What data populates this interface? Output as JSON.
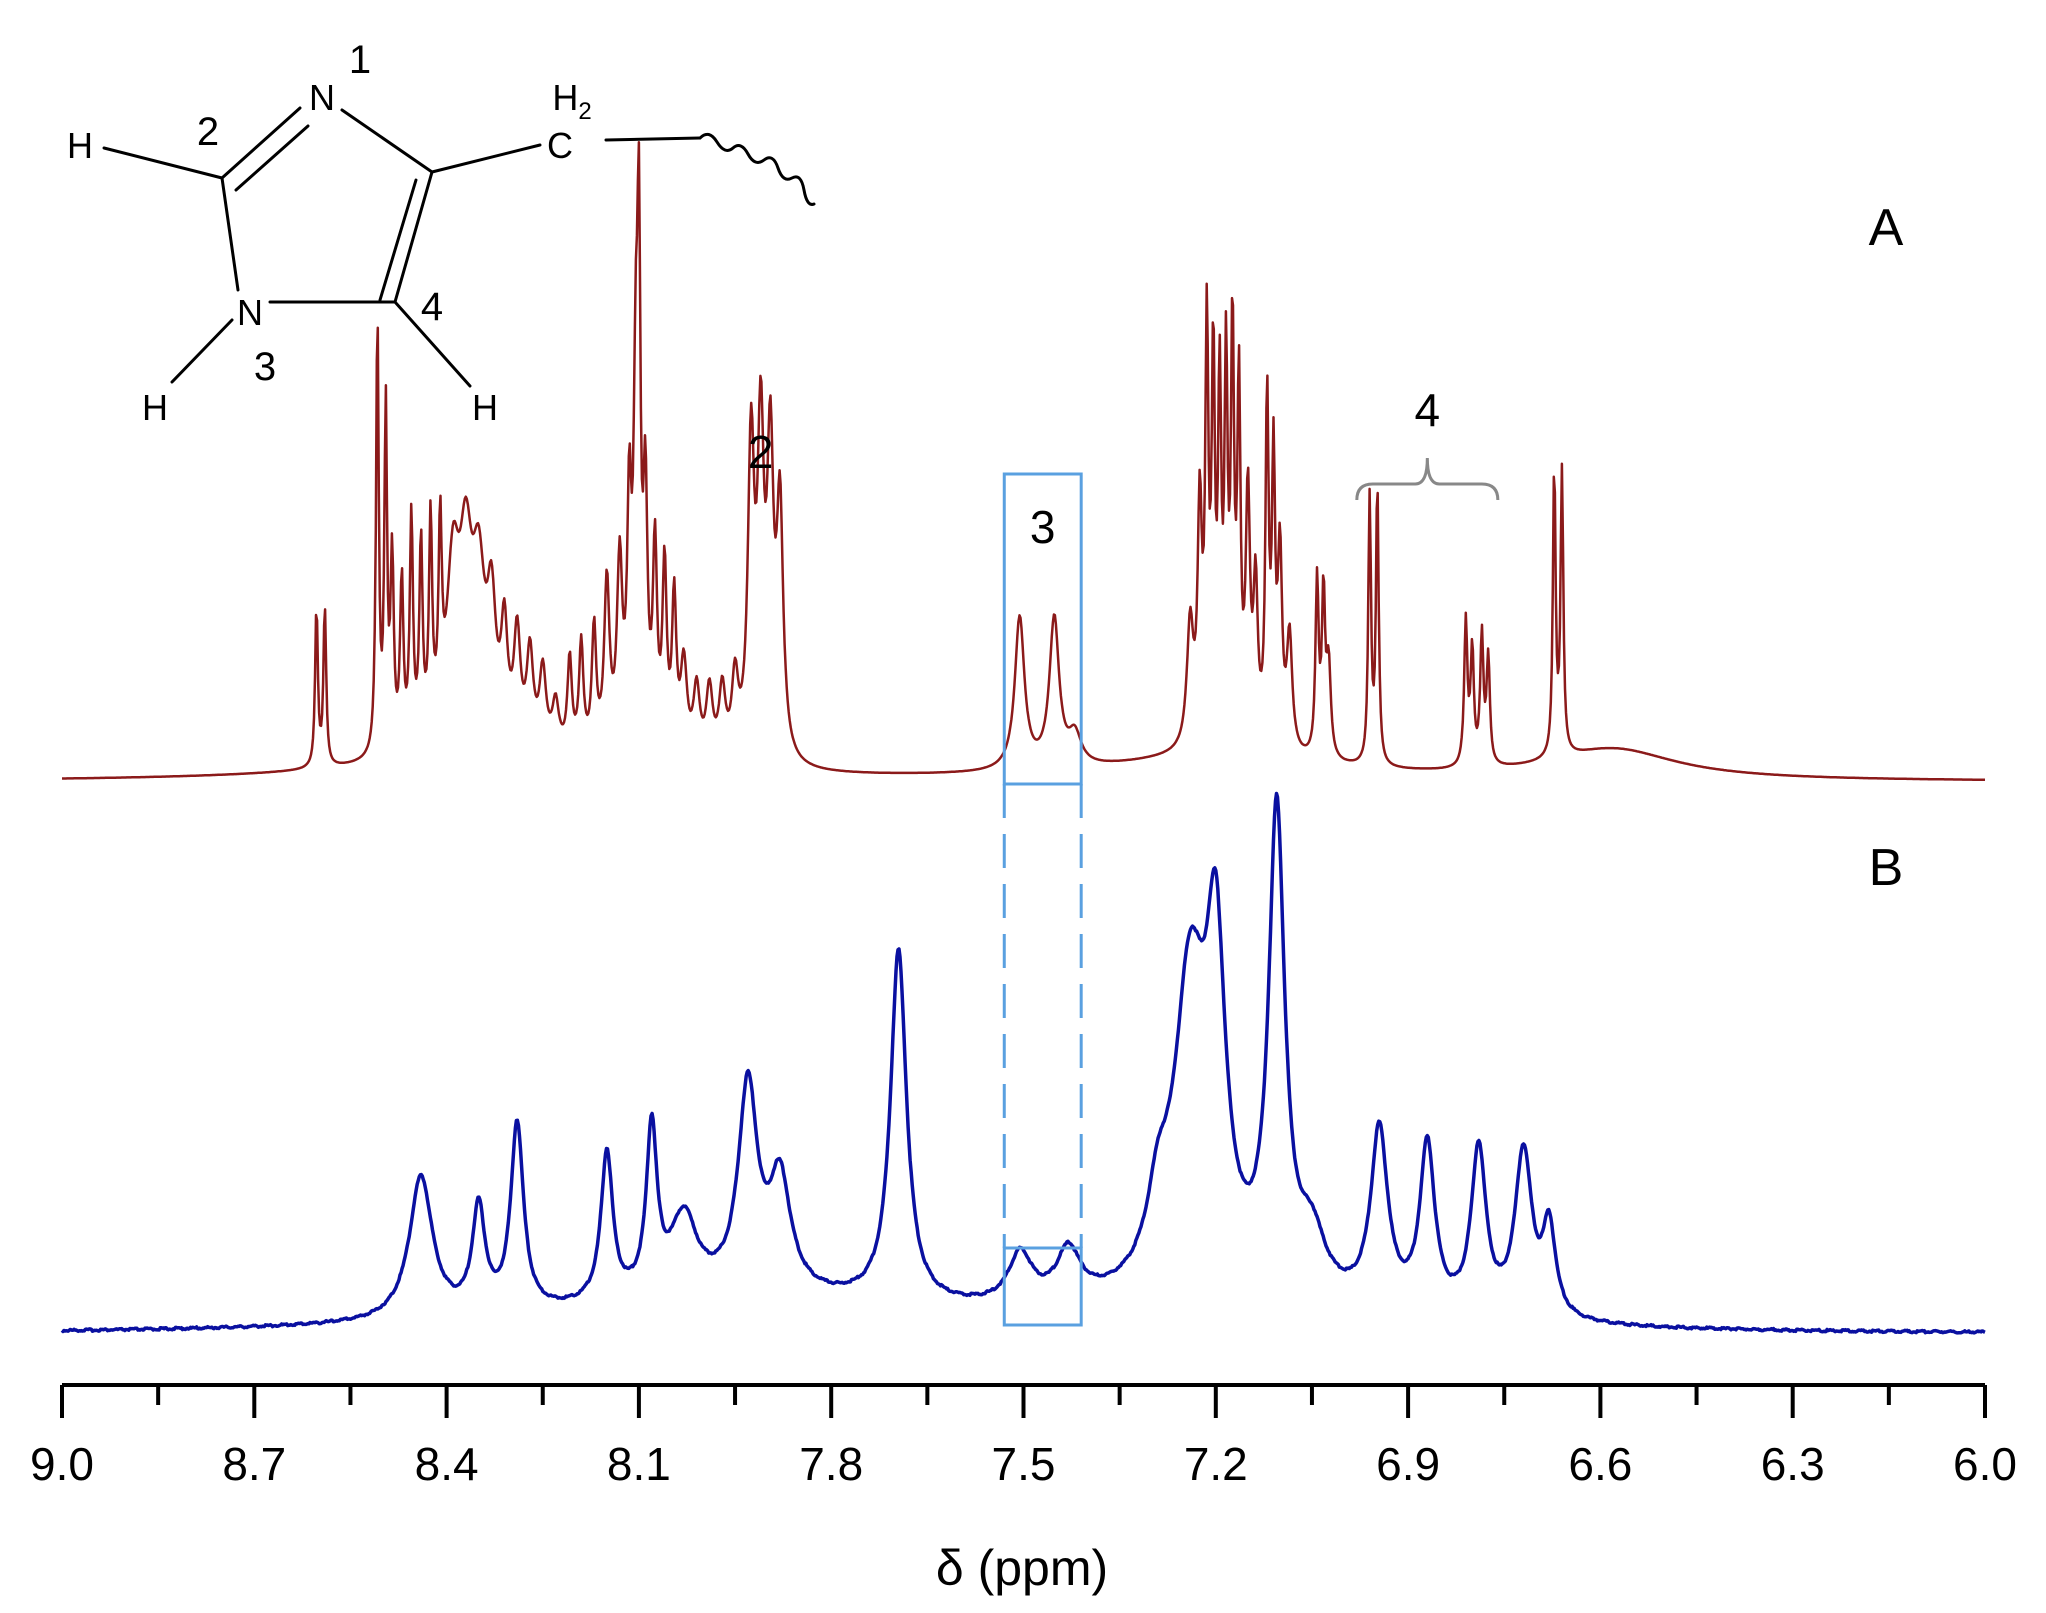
{
  "chart_data": {
    "type": "line",
    "xlabel": "δ (ppm)",
    "xlim": [
      9.0,
      6.0
    ],
    "x_reversed": true,
    "ylim": [
      0,
      1
    ],
    "y_axis_visible": false,
    "grid": false,
    "x_ticks": [
      "9.0",
      "8.7",
      "8.4",
      "8.1",
      "7.8",
      "7.5",
      "7.2",
      "6.9",
      "6.6",
      "6.3",
      "6.0"
    ],
    "panels": [
      {
        "label": "A",
        "color": "#8b1a1a"
      },
      {
        "label": "B",
        "color": "#0a10a0"
      }
    ],
    "series": [
      {
        "color": "#8b1a1a",
        "panel": "A",
        "peaks": [
          {
            "x": 8.603,
            "h": 0.21,
            "w": 0.0025
          },
          {
            "x": 8.59,
            "h": 0.21,
            "w": 0.0025
          },
          {
            "x": 8.508,
            "h": 0.58,
            "w": 0.0025
          },
          {
            "x": 8.495,
            "h": 0.45,
            "w": 0.0025
          },
          {
            "x": 8.485,
            "h": 0.25,
            "w": 0.003
          },
          {
            "x": 8.47,
            "h": 0.22,
            "w": 0.003
          },
          {
            "x": 8.455,
            "h": 0.3,
            "w": 0.003
          },
          {
            "x": 8.44,
            "h": 0.26,
            "w": 0.003
          },
          {
            "x": 8.425,
            "h": 0.28,
            "w": 0.003
          },
          {
            "x": 8.41,
            "h": 0.25,
            "w": 0.003
          },
          {
            "x": 8.39,
            "h": 0.22,
            "w": 0.012
          },
          {
            "x": 8.37,
            "h": 0.22,
            "w": 0.012
          },
          {
            "x": 8.35,
            "h": 0.2,
            "w": 0.012
          },
          {
            "x": 8.33,
            "h": 0.16,
            "w": 0.008
          },
          {
            "x": 8.31,
            "h": 0.14,
            "w": 0.006
          },
          {
            "x": 8.29,
            "h": 0.14,
            "w": 0.006
          },
          {
            "x": 8.27,
            "h": 0.12,
            "w": 0.006
          },
          {
            "x": 8.25,
            "h": 0.1,
            "w": 0.006
          },
          {
            "x": 8.23,
            "h": 0.06,
            "w": 0.006
          },
          {
            "x": 8.208,
            "h": 0.12,
            "w": 0.004
          },
          {
            "x": 8.19,
            "h": 0.14,
            "w": 0.004
          },
          {
            "x": 8.17,
            "h": 0.16,
            "w": 0.004
          },
          {
            "x": 8.15,
            "h": 0.22,
            "w": 0.005
          },
          {
            "x": 8.13,
            "h": 0.24,
            "w": 0.005
          },
          {
            "x": 8.115,
            "h": 0.3,
            "w": 0.004
          },
          {
            "x": 8.105,
            "h": 0.42,
            "w": 0.004
          },
          {
            "x": 8.1,
            "h": 0.57,
            "w": 0.003
          },
          {
            "x": 8.09,
            "h": 0.32,
            "w": 0.004
          },
          {
            "x": 8.075,
            "h": 0.26,
            "w": 0.004
          },
          {
            "x": 8.06,
            "h": 0.24,
            "w": 0.004
          },
          {
            "x": 8.045,
            "h": 0.2,
            "w": 0.004
          },
          {
            "x": 8.03,
            "h": 0.12,
            "w": 0.006
          },
          {
            "x": 8.01,
            "h": 0.09,
            "w": 0.006
          },
          {
            "x": 7.99,
            "h": 0.09,
            "w": 0.006
          },
          {
            "x": 7.97,
            "h": 0.09,
            "w": 0.006
          },
          {
            "x": 7.95,
            "h": 0.1,
            "w": 0.006
          },
          {
            "x": 7.925,
            "h": 0.4,
            "w": 0.006
          },
          {
            "x": 7.91,
            "h": 0.4,
            "w": 0.006
          },
          {
            "x": 7.895,
            "h": 0.38,
            "w": 0.006
          },
          {
            "x": 7.88,
            "h": 0.32,
            "w": 0.006
          },
          {
            "x": 7.506,
            "h": 0.2,
            "w": 0.009
          },
          {
            "x": 7.452,
            "h": 0.195,
            "w": 0.009
          },
          {
            "x": 7.42,
            "h": 0.04,
            "w": 0.012
          },
          {
            "x": 7.24,
            "h": 0.16,
            "w": 0.006
          },
          {
            "x": 7.225,
            "h": 0.3,
            "w": 0.004
          },
          {
            "x": 7.214,
            "h": 0.52,
            "w": 0.003
          },
          {
            "x": 7.204,
            "h": 0.48,
            "w": 0.003
          },
          {
            "x": 7.194,
            "h": 0.44,
            "w": 0.003
          },
          {
            "x": 7.184,
            "h": 0.47,
            "w": 0.003
          },
          {
            "x": 7.174,
            "h": 0.52,
            "w": 0.003
          },
          {
            "x": 7.164,
            "h": 0.45,
            "w": 0.003
          },
          {
            "x": 7.15,
            "h": 0.32,
            "w": 0.004
          },
          {
            "x": 7.138,
            "h": 0.2,
            "w": 0.004
          },
          {
            "x": 7.12,
            "h": 0.45,
            "w": 0.003
          },
          {
            "x": 7.11,
            "h": 0.36,
            "w": 0.003
          },
          {
            "x": 7.1,
            "h": 0.25,
            "w": 0.004
          },
          {
            "x": 7.085,
            "h": 0.15,
            "w": 0.005
          },
          {
            "x": 7.042,
            "h": 0.23,
            "w": 0.003
          },
          {
            "x": 7.032,
            "h": 0.21,
            "w": 0.003
          },
          {
            "x": 7.024,
            "h": 0.12,
            "w": 0.004
          },
          {
            "x": 6.96,
            "h": 0.35,
            "w": 0.0025
          },
          {
            "x": 6.948,
            "h": 0.37,
            "w": 0.0025
          },
          {
            "x": 6.81,
            "h": 0.19,
            "w": 0.003
          },
          {
            "x": 6.8,
            "h": 0.15,
            "w": 0.003
          },
          {
            "x": 6.785,
            "h": 0.17,
            "w": 0.003
          },
          {
            "x": 6.775,
            "h": 0.14,
            "w": 0.003
          },
          {
            "x": 6.672,
            "h": 0.38,
            "w": 0.0025
          },
          {
            "x": 6.66,
            "h": 0.37,
            "w": 0.0025
          }
        ],
        "broad": [
          {
            "x": 8.32,
            "h": 0.03,
            "w": 0.25
          },
          {
            "x": 7.2,
            "h": 0.03,
            "w": 0.2
          },
          {
            "x": 6.58,
            "h": 0.04,
            "w": 0.12
          }
        ]
      },
      {
        "color": "#0a10a0",
        "panel": "B",
        "peaks": [
          {
            "x": 8.44,
            "h": 0.26,
            "w": 0.022
          },
          {
            "x": 8.35,
            "h": 0.19,
            "w": 0.012
          },
          {
            "x": 8.29,
            "h": 0.34,
            "w": 0.012
          },
          {
            "x": 8.15,
            "h": 0.27,
            "w": 0.011
          },
          {
            "x": 8.08,
            "h": 0.3,
            "w": 0.01
          },
          {
            "x": 8.03,
            "h": 0.14,
            "w": 0.025
          },
          {
            "x": 7.93,
            "h": 0.37,
            "w": 0.018
          },
          {
            "x": 7.88,
            "h": 0.2,
            "w": 0.02
          },
          {
            "x": 7.695,
            "h": 0.64,
            "w": 0.015
          },
          {
            "x": 7.505,
            "h": 0.09,
            "w": 0.022
          },
          {
            "x": 7.43,
            "h": 0.09,
            "w": 0.022
          },
          {
            "x": 7.29,
            "h": 0.12,
            "w": 0.02
          },
          {
            "x": 7.24,
            "h": 0.55,
            "w": 0.03
          },
          {
            "x": 7.2,
            "h": 0.55,
            "w": 0.018
          },
          {
            "x": 7.105,
            "h": 0.86,
            "w": 0.015
          },
          {
            "x": 7.05,
            "h": 0.1,
            "w": 0.025
          },
          {
            "x": 6.945,
            "h": 0.32,
            "w": 0.016
          },
          {
            "x": 6.87,
            "h": 0.3,
            "w": 0.014
          },
          {
            "x": 6.79,
            "h": 0.3,
            "w": 0.014
          },
          {
            "x": 6.72,
            "h": 0.3,
            "w": 0.016
          },
          {
            "x": 6.68,
            "h": 0.16,
            "w": 0.012
          }
        ],
        "broad": [
          {
            "x": 7.95,
            "h": 0.06,
            "w": 0.35
          },
          {
            "x": 7.2,
            "h": 0.05,
            "w": 0.25
          }
        ]
      }
    ],
    "annotations": [
      {
        "text": "2",
        "x": 7.91
      },
      {
        "text": "3",
        "x_range": [
          7.53,
          7.41
        ]
      },
      {
        "text": "4",
        "x_range": [
          6.98,
          6.76
        ]
      }
    ],
    "structure_labels": {
      "H_left": "H",
      "C2": "2",
      "N1_atom": "N",
      "N1": "1",
      "H2_H": "H",
      "H2_sub": "2",
      "C": "C",
      "N3_atom": "N",
      "N3": "3",
      "C4": "4",
      "H_NH": "H",
      "H_C4": "H"
    }
  }
}
